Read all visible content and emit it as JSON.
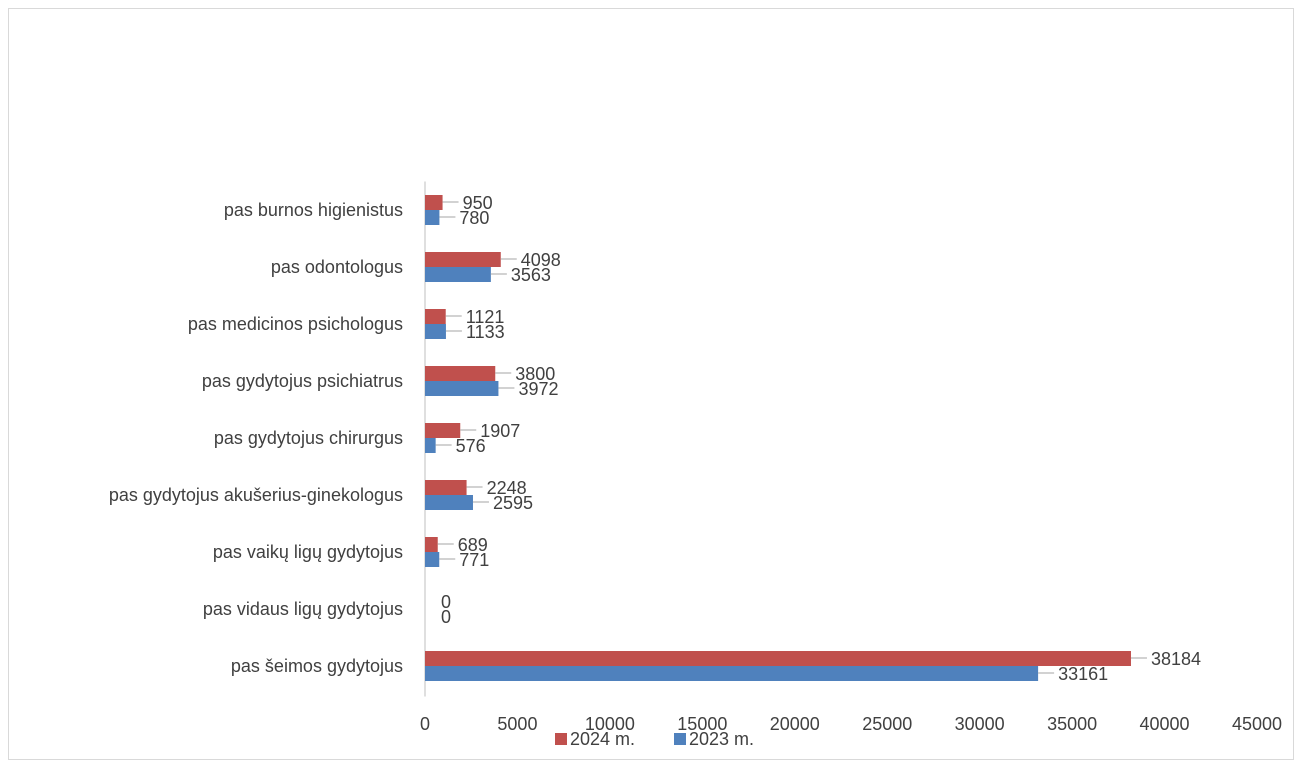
{
  "chart_data": {
    "type": "bar",
    "orientation": "horizontal",
    "categories": [
      "pas šeimos gydytojus",
      "pas vidaus ligų gydytojus",
      "pas vaikų ligų gydytojus",
      "pas gydytojus akušerius-ginekologus",
      "pas gydytojus chirurgus",
      "pas gydytojus psichiatrus",
      "pas medicinos psichologus",
      "pas odontologus",
      "pas burnos higienistus"
    ],
    "series": [
      {
        "name": "2024 m.",
        "color": "#c0504d",
        "values": [
          38184,
          0,
          689,
          2248,
          1907,
          3800,
          1121,
          4098,
          950
        ]
      },
      {
        "name": "2023 m.",
        "color": "#4f81bd",
        "values": [
          33161,
          0,
          771,
          2595,
          576,
          3972,
          1133,
          3563,
          780
        ]
      }
    ],
    "xlim": [
      0,
      45000
    ],
    "xticks": [
      0,
      5000,
      10000,
      15000,
      20000,
      25000,
      30000,
      35000,
      40000,
      45000
    ],
    "grid": false,
    "legend_position": "bottom",
    "data_labels": true
  }
}
